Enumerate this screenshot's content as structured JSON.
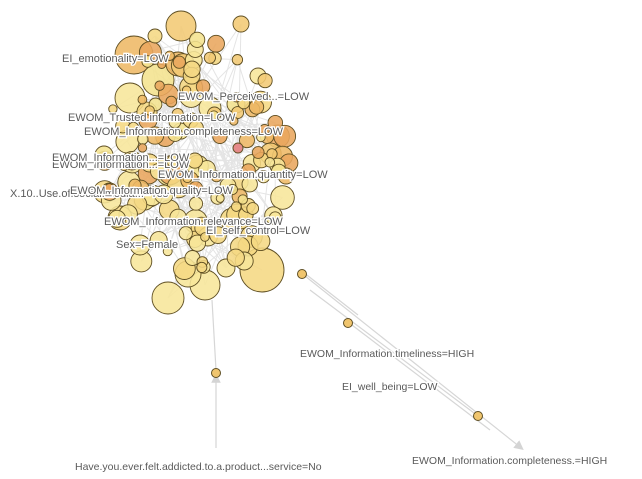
{
  "labels": {
    "emotionality": "EI_emotionality=LOW",
    "perceived_quality_a": "EWOM_Perceived...=LOW",
    "trusted_info": "EWOM_Trusted.information=LOW",
    "info_completeness_low": "EWOM_Information.completeness=LOW",
    "ewom_info_a": "EWOM_Information...=LOW",
    "ewom_info_b": "EWOM_Information...=LOW",
    "info_quantity": "EWOM_Information.quantity=LOW",
    "social_media_use": "X.10..Use.of.social.media...=Yes",
    "ewom_quality": "EWOM_Information.quality=LOW",
    "info_relevance": "EWOM_Information.relevance=LOW",
    "self_control": "EI_self_control=LOW",
    "sex_female": "Sex=Female",
    "info_timeliness_high": "EWOM_Information.timeliness=HIGH",
    "well_being": "EI_well_being=LOW",
    "info_completeness_high": "EWOM_Information.completeness.=HIGH",
    "addicted": "Have.you.ever.felt.addicted.to.a.product...service=No"
  },
  "colors": {
    "edge": "#c8c8c8",
    "node_light": "#f6e08a",
    "node_mid": "#f0c56e",
    "node_dark": "#e8a85a",
    "node_stroke": "#6b5a2a",
    "arrow": "#d0d0d0"
  }
}
